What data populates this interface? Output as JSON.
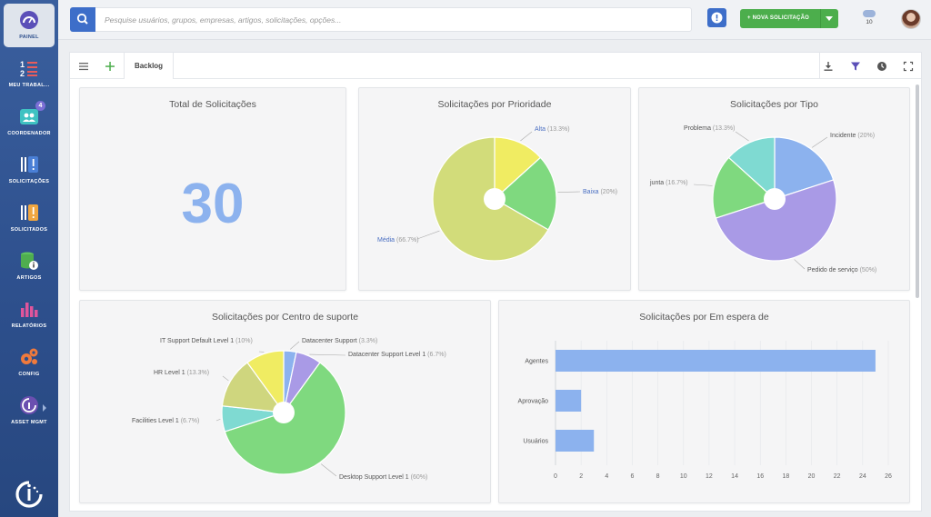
{
  "sidebar": {
    "items": [
      {
        "label": "PAINEL"
      },
      {
        "label": "MEU TRABAL..."
      },
      {
        "label": "COORDENADOR",
        "badge": "4"
      },
      {
        "label": "SOLICITAÇÕES"
      },
      {
        "label": "SOLICITADOS"
      },
      {
        "label": "ARTIGOS"
      },
      {
        "label": "RELATÓRIOS"
      },
      {
        "label": "CONFIG"
      },
      {
        "label": "ASSET MGMT"
      }
    ]
  },
  "topbar": {
    "search_placeholder": "Pesquise usuários, grupos, empresas, artigos, solicitações, opções...",
    "new_request_label": "+ NOVA SOLICITAÇÃO",
    "notification_count": "10"
  },
  "toolbar": {
    "tab_label": "Backlog"
  },
  "colors": {
    "yellow": "#f0ec62",
    "green": "#7fd97f",
    "olive": "#d2dc7a",
    "blue": "#8cb2ee",
    "purple": "#a99ae6",
    "teal": "#7fdad2",
    "khaki": "#cfd67e"
  },
  "cards": {
    "total": {
      "title": "Total de Solicitações",
      "value": "30"
    },
    "prioridade": {
      "title": "Solicitações por Prioridade",
      "chart_data": {
        "type": "pie",
        "slices": [
          {
            "label": "Alta",
            "pct": "(13.3%)",
            "value": 13.3
          },
          {
            "label": "Baixa",
            "pct": "(20%)",
            "value": 20
          },
          {
            "label": "Média",
            "pct": "(66.7%)",
            "value": 66.7
          }
        ]
      }
    },
    "tipo": {
      "title": "Solicitações por Tipo",
      "chart_data": {
        "type": "pie",
        "slices": [
          {
            "label": "Incidente",
            "pct": "(20%)",
            "value": 20
          },
          {
            "label": "Pedido de serviço",
            "pct": "(50%)",
            "value": 50
          },
          {
            "label": "junta",
            "pct": "(16.7%)",
            "value": 16.7
          },
          {
            "label": "Problema",
            "pct": "(13.3%)",
            "value": 13.3
          }
        ]
      }
    },
    "centro": {
      "title": "Solicitações por Centro de suporte",
      "chart_data": {
        "type": "pie",
        "slices": [
          {
            "label": "Datacenter Support",
            "pct": "(3.3%)",
            "value": 3.3
          },
          {
            "label": "Datacenter Support Level 1",
            "pct": "(6.7%)",
            "value": 6.7
          },
          {
            "label": "Desktop Support Level 1",
            "pct": "(60%)",
            "value": 60
          },
          {
            "label": "Facilities Level 1",
            "pct": "(6.7%)",
            "value": 6.7
          },
          {
            "label": "HR Level 1",
            "pct": "(13.3%)",
            "value": 13.3
          },
          {
            "label": "IT Support Default Level 1",
            "pct": "(10%)",
            "value": 10
          }
        ]
      }
    },
    "espera": {
      "title": "Solicitações por Em espera de",
      "chart_data": {
        "type": "bar",
        "orientation": "horizontal",
        "categories": [
          "Agentes",
          "Aprovação",
          "Usuários"
        ],
        "values": [
          25,
          2,
          3
        ],
        "xticks": [
          "0",
          "2",
          "4",
          "6",
          "8",
          "10",
          "12",
          "14",
          "16",
          "18",
          "20",
          "22",
          "24",
          "26"
        ],
        "xlim": [
          0,
          26
        ]
      }
    }
  }
}
